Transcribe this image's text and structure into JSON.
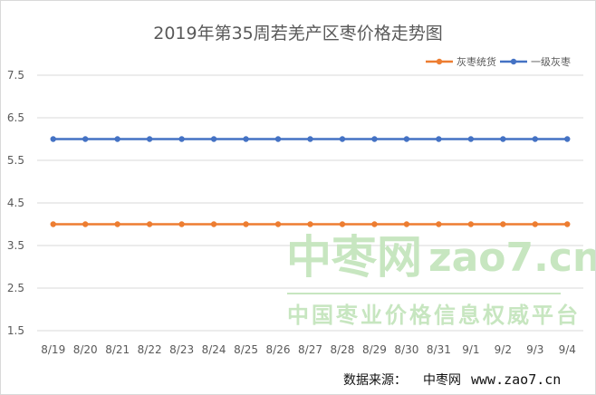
{
  "chart_data": {
    "type": "line",
    "title": "2019年第35周若羌产区枣价格走势图",
    "categories": [
      "8/19",
      "8/20",
      "8/21",
      "8/22",
      "8/23",
      "8/24",
      "8/25",
      "8/26",
      "8/27",
      "8/28",
      "8/29",
      "8/30",
      "8/31",
      "9/1",
      "9/2",
      "9/3",
      "9/4"
    ],
    "series": [
      {
        "name": "灰枣统货",
        "color": "#ED7D31",
        "values": [
          4,
          4,
          4,
          4,
          4,
          4,
          4,
          4,
          4,
          4,
          4,
          4,
          4,
          4,
          4,
          4,
          4
        ]
      },
      {
        "name": "一级灰枣",
        "color": "#4472C4",
        "values": [
          6,
          6,
          6,
          6,
          6,
          6,
          6,
          6,
          6,
          6,
          6,
          6,
          6,
          6,
          6,
          6,
          6
        ]
      }
    ],
    "y_ticks": [
      "1.5",
      "2.5",
      "3.5",
      "4.5",
      "5.5",
      "6.5",
      "7.5"
    ],
    "ylim": [
      1.5,
      7.5
    ],
    "grid": true,
    "legend": "top-right"
  },
  "watermark": {
    "brand": "中枣网",
    "domain": "zao7.cn",
    "slogan": "中国枣业价格信息权威平台",
    "color": "#c7e6c0"
  },
  "source": {
    "label": "数据来源：",
    "name": "中枣网",
    "url": "www.zao7.cn"
  }
}
